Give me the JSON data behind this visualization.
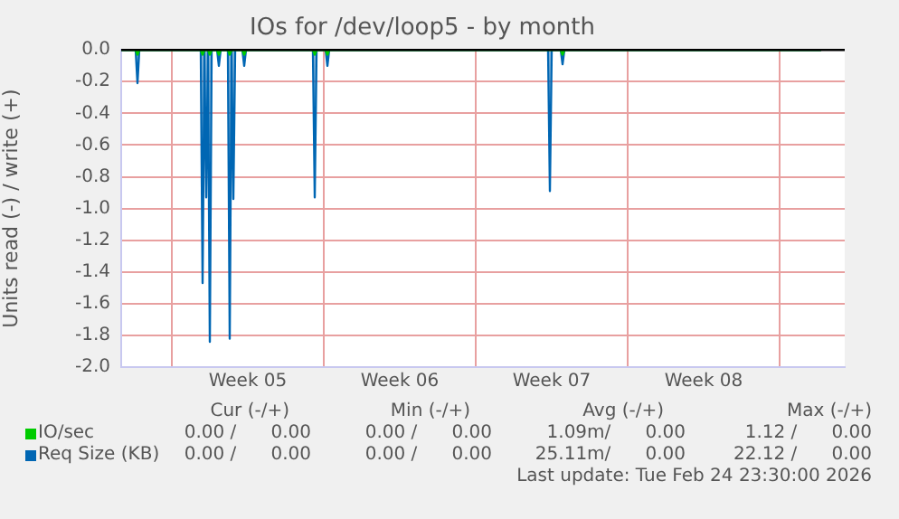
{
  "chart_data": {
    "type": "area",
    "title": "IOs for /dev/loop5 - by month",
    "ylabel": "Units read (-) / write (+)",
    "x": [
      "2026-01-23T16:00",
      "2026-01-24T08:00",
      "2026-01-24T10:00",
      "2026-01-24T12:00",
      "2026-01-27T08:00",
      "2026-01-27T10:00",
      "2026-01-27T12:00",
      "2026-01-27T14:00",
      "2026-01-27T16:00",
      "2026-01-27T18:00",
      "2026-01-27T20:00",
      "2026-01-28T02:00",
      "2026-01-28T04:00",
      "2026-01-28T06:00",
      "2026-01-28T14:00",
      "2026-01-28T16:00",
      "2026-01-28T18:00",
      "2026-01-28T20:00",
      "2026-01-28T22:00",
      "2026-01-29T06:00",
      "2026-01-29T08:00",
      "2026-01-29T10:00",
      "2026-02-01T12:00",
      "2026-02-01T14:00",
      "2026-02-01T16:00",
      "2026-02-02T02:00",
      "2026-02-02T04:00",
      "2026-02-02T06:00",
      "2026-02-12T08:00",
      "2026-02-12T10:00",
      "2026-02-12T12:00",
      "2026-02-12T22:00",
      "2026-02-13T00:00",
      "2026-02-13T02:00",
      "2026-02-24T22:00"
    ],
    "series": [
      {
        "name": "IO/sec",
        "color": "#00cc00",
        "values": [
          0,
          0,
          -0.03,
          0,
          0,
          -0.03,
          0,
          0,
          0,
          -0.03,
          0,
          0,
          -0.03,
          0,
          0,
          -0.03,
          0,
          0,
          0,
          0,
          -0.03,
          0,
          0,
          -0.03,
          0,
          0,
          -0.03,
          0,
          0,
          0,
          0,
          0,
          -0.03,
          0,
          0
        ]
      },
      {
        "name": "Req Size (KB)",
        "color": "#0066b3",
        "values": [
          0,
          0,
          -0.21,
          0,
          0,
          -1.47,
          0,
          -0.93,
          0,
          -1.84,
          0,
          0,
          -0.1,
          0,
          0,
          -1.82,
          0,
          -0.94,
          0,
          0,
          -0.1,
          0,
          0,
          -0.93,
          0,
          0,
          -0.1,
          0,
          0,
          -0.89,
          0,
          0,
          -0.09,
          0,
          0
        ]
      }
    ],
    "xlim": [
      "2026-01-23T16:00",
      "2026-02-26T00:00"
    ],
    "xticks": [
      {
        "value": "2026-01-26",
        "label": null
      },
      {
        "value": "2026-01-29T12:00",
        "label": "Week 05"
      },
      {
        "value": "2026-02-02",
        "label": null
      },
      {
        "value": "2026-02-05T12:00",
        "label": "Week 06"
      },
      {
        "value": "2026-02-09",
        "label": null
      },
      {
        "value": "2026-02-12T12:00",
        "label": "Week 07"
      },
      {
        "value": "2026-02-16",
        "label": null
      },
      {
        "value": "2026-02-19T12:00",
        "label": "Week 08"
      },
      {
        "value": "2026-02-23",
        "label": null
      }
    ],
    "ylim": [
      -2,
      0
    ],
    "yticks": [
      {
        "value": -2,
        "label": "-2.0"
      },
      {
        "value": -1.8,
        "label": "-1.8"
      },
      {
        "value": -1.6,
        "label": "-1.6"
      },
      {
        "value": -1.4,
        "label": "-1.4"
      },
      {
        "value": -1.2,
        "label": "-1.2"
      },
      {
        "value": -1,
        "label": "-1.0"
      },
      {
        "value": -0.8,
        "label": "-0.8"
      },
      {
        "value": -0.6,
        "label": "-0.6"
      },
      {
        "value": -0.4,
        "label": "-0.4"
      },
      {
        "value": -0.2,
        "label": "-0.2"
      },
      {
        "value": 0,
        "label": "0.0"
      }
    ],
    "ref_lines": [
      {
        "axis": "y",
        "value": 0,
        "color": "#000000"
      }
    ],
    "grid": true,
    "legend": "bottom left",
    "annotations": [
      "Cur (-/+)",
      "Min (-/+)",
      "Avg (-/+)",
      "Max (-/+)",
      "0.00 /      0.00",
      "0.00 /      0.00",
      "1.09m/      0.00",
      "1.12 /      0.00",
      "0.00 /      0.00",
      "0.00 /      0.00",
      "25.11m/      0.00",
      "22.12 /      0.00",
      "Last update: Tue Feb 24 23:30:00 2026"
    ]
  }
}
